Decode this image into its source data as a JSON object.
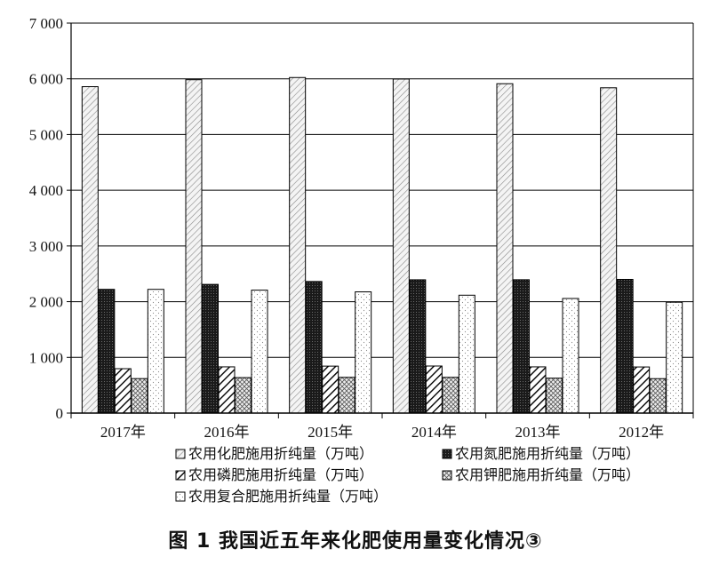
{
  "chart_data": {
    "type": "bar",
    "title": "",
    "xlabel": "",
    "ylabel": "",
    "ylim": [
      0,
      7000
    ],
    "yticks": [
      0,
      1000,
      2000,
      3000,
      4000,
      5000,
      6000,
      7000
    ],
    "ytick_labels": [
      "0",
      "1 000",
      "2 000",
      "3 000",
      "4 000",
      "5 000",
      "6 000",
      "7 000"
    ],
    "grid": true,
    "legend_position": "bottom",
    "categories": [
      "2017年",
      "2016年",
      "2015年",
      "2014年",
      "2013年",
      "2012年"
    ],
    "series": [
      {
        "name": "农用化肥施用折纯量（万吨）",
        "pattern": "diagonal-light",
        "values": [
          5859,
          5984,
          6023,
          5996,
          5912,
          5839
        ]
      },
      {
        "name": "农用氮肥施用折纯量（万吨）",
        "pattern": "dark-dots",
        "values": [
          2221,
          2310,
          2362,
          2393,
          2394,
          2400
        ]
      },
      {
        "name": "农用磷肥施用折纯量（万吨）",
        "pattern": "diagonal-bold",
        "values": [
          797,
          830,
          843,
          845,
          830,
          828
        ]
      },
      {
        "name": "农用钾肥施用折纯量（万吨）",
        "pattern": "crosshatch",
        "values": [
          619,
          637,
          642,
          642,
          627,
          618
        ]
      },
      {
        "name": "农用复合肥施用折纯量（万吨）",
        "pattern": "sparse-dots",
        "values": [
          2221,
          2207,
          2176,
          2116,
          2057,
          1990
        ]
      }
    ]
  },
  "caption": "图 1 我国近五年来化肥使用量变化情况③"
}
